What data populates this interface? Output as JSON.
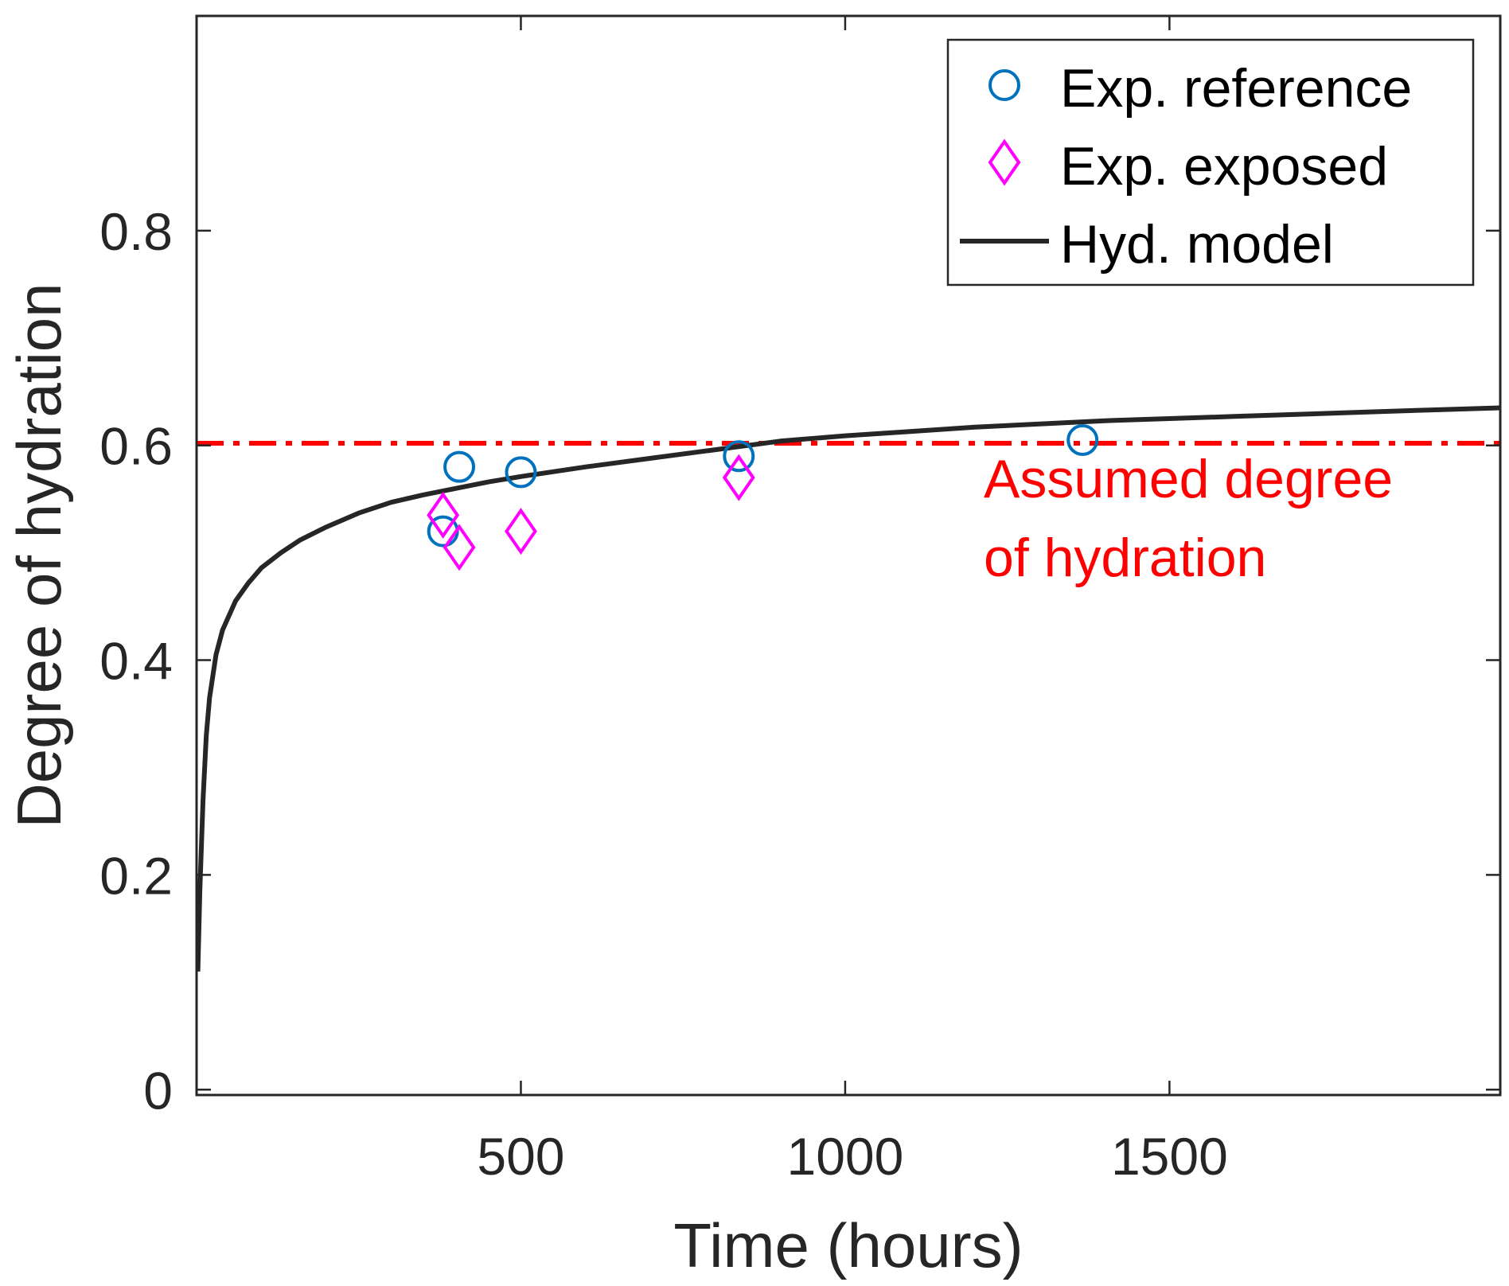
{
  "chart_data": {
    "type": "scatter",
    "xlabel": "Time (hours)",
    "ylabel": "Degree of hydration",
    "xlim": [
      0,
      2010
    ],
    "ylim": [
      -0.005,
      1.0
    ],
    "xticks": [
      500,
      1000,
      1500
    ],
    "xtick_labels": [
      "500",
      "1000",
      "1500"
    ],
    "yticks": [
      0,
      0.2,
      0.4,
      0.6,
      0.8
    ],
    "ytick_labels": [
      "0",
      "0.2",
      "0.4",
      "0.6",
      "0.8"
    ],
    "grid": false,
    "legend_position": "top-right",
    "series": [
      {
        "name": "Exp. reference",
        "kind": "scatter",
        "marker": "circle",
        "color": "#0072BD",
        "x": [
          380,
          405,
          500,
          836,
          1366
        ],
        "y": [
          0.52,
          0.58,
          0.575,
          0.59,
          0.605
        ]
      },
      {
        "name": "Exp. exposed",
        "kind": "scatter",
        "marker": "diamond",
        "color": "#FF00FF",
        "x": [
          380,
          405,
          500,
          836
        ],
        "y": [
          0.535,
          0.505,
          0.52,
          0.57
        ]
      },
      {
        "name": "Hyd. model",
        "kind": "line",
        "color": "#262626",
        "x": [
          2,
          5,
          10,
          15,
          20,
          30,
          40,
          60,
          80,
          100,
          130,
          160,
          200,
          250,
          300,
          350,
          400,
          450,
          500,
          600,
          700,
          800,
          900,
          1000,
          1100,
          1200,
          1300,
          1400,
          1500,
          1600,
          1700,
          1800,
          1900,
          2010
        ],
        "y": [
          0.11,
          0.185,
          0.27,
          0.33,
          0.365,
          0.405,
          0.428,
          0.455,
          0.472,
          0.486,
          0.5,
          0.512,
          0.524,
          0.537,
          0.547,
          0.554,
          0.56,
          0.566,
          0.571,
          0.58,
          0.588,
          0.596,
          0.604,
          0.609,
          0.613,
          0.617,
          0.62,
          0.623,
          0.625,
          0.627,
          0.629,
          0.631,
          0.633,
          0.635
        ]
      }
    ],
    "reference_line": {
      "y": 0.602,
      "color": "#FF0000",
      "style": "dash-dot"
    },
    "annotations": [
      {
        "text": "Assumed degree",
        "color": "#FF0000"
      },
      {
        "text": "of hydration",
        "color": "#FF0000"
      }
    ]
  }
}
